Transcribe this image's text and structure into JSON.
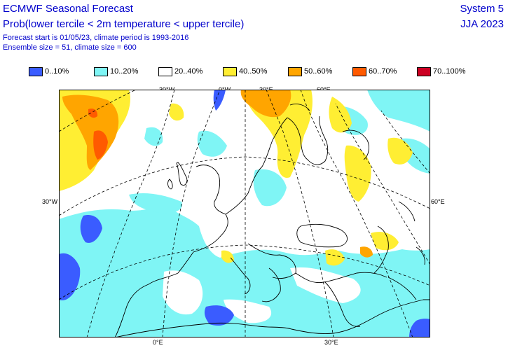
{
  "header": {
    "title": "ECMWF Seasonal Forecast",
    "subtitle": "Prob(lower tercile < 2m temperature < upper tercile)",
    "info_line1": "Forecast start is 01/05/23, climate period is 1993-2016",
    "info_line2": "Ensemble size = 51, climate size = 600",
    "system": "System 5",
    "period": "JJA 2023"
  },
  "legend": [
    {
      "label": "0..10%",
      "color": "#3a5cff"
    },
    {
      "label": "10..20%",
      "color": "#7ff5f5"
    },
    {
      "label": "20..40%",
      "color": "#ffffff"
    },
    {
      "label": "40..50%",
      "color": "#ffee33"
    },
    {
      "label": "50..60%",
      "color": "#ffa500"
    },
    {
      "label": "60..70%",
      "color": "#ff5a00"
    },
    {
      "label": "70..100%",
      "color": "#cc0022"
    }
  ],
  "map_labels": {
    "top": [
      "30°W",
      "0°W",
      "30°E",
      "60°E"
    ],
    "left": "30°W",
    "right": "60°E",
    "bottom": [
      "0°E",
      "30°E"
    ]
  }
}
